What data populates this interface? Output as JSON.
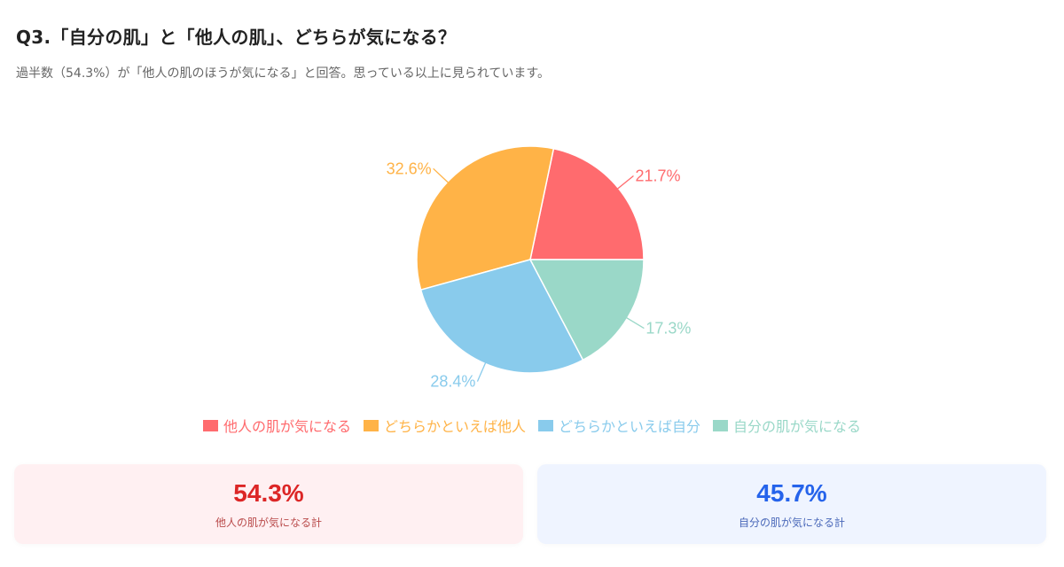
{
  "header": {
    "title": "Q3.「自分の肌」と「他人の肌」、どちらが気になる？",
    "subtitle": "過半数（54.3%）が「他人の肌のほうが気になる」と回答。思っている以上に見られています。"
  },
  "colors": {
    "red": "#ff6b6e",
    "orange": "#ffb347",
    "blue": "#89cbec",
    "teal": "#9ad8c8",
    "total_left": "#dc2626",
    "total_right": "#2563eb"
  },
  "chart_data": {
    "type": "pie",
    "title": "Q3.「自分の肌」と「他人の肌」、どちらが気になる？",
    "categories": [
      "他人の肌が気になる",
      "どちらかといえば他人",
      "どちらかといえば自分",
      "自分の肌が気になる"
    ],
    "values": [
      21.7,
      32.6,
      28.4,
      17.3
    ],
    "labels": [
      "21.7%",
      "32.6%",
      "28.4%",
      "17.3%"
    ],
    "colors": [
      "#ff6b6e",
      "#ffb347",
      "#89cbec",
      "#9ad8c8"
    ],
    "start_angle_deg": 0,
    "direction": "counterclockwise",
    "legend_position": "bottom"
  },
  "legend": {
    "items": [
      {
        "label": "他人の肌が気になる",
        "color": "#ff6b6e"
      },
      {
        "label": "どちらかといえば他人",
        "color": "#ffb347"
      },
      {
        "label": "どちらかといえば自分",
        "color": "#89cbec"
      },
      {
        "label": "自分の肌が気になる",
        "color": "#9ad8c8"
      }
    ]
  },
  "totals": {
    "left": {
      "value": "54.3%",
      "label": "他人の肌が気になる計"
    },
    "right": {
      "value": "45.7%",
      "label": "自分の肌が気になる計"
    }
  }
}
